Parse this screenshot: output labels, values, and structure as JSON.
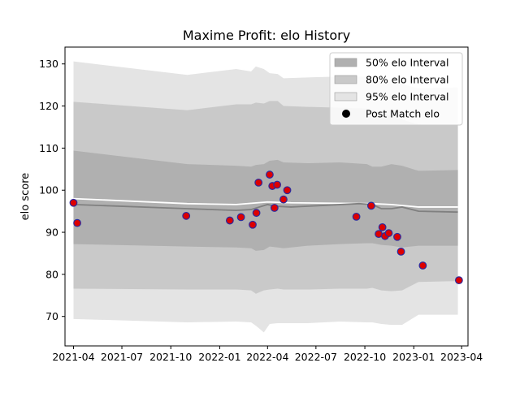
{
  "chart_data": {
    "type": "line",
    "title": "Maxime Profit: elo History",
    "xlabel": "",
    "ylabel": "elo score",
    "xlim": [
      "2021-03-16",
      "2023-04-13"
    ],
    "ylim": [
      63,
      134
    ],
    "x_ticks": [
      "2021-04",
      "2021-07",
      "2021-10",
      "2022-01",
      "2022-04",
      "2022-07",
      "2022-10",
      "2023-01",
      "2023-04"
    ],
    "y_ticks": [
      70,
      80,
      90,
      100,
      110,
      120,
      130
    ],
    "grid": false,
    "legend": {
      "placement": "top-right",
      "entries": [
        {
          "label": "50% elo Interval",
          "kind": "band",
          "color": "#b0b0b0"
        },
        {
          "label": "80% elo Interval",
          "kind": "band",
          "color": "#c9c9c9"
        },
        {
          "label": "95% elo Interval",
          "kind": "band",
          "color": "#e4e4e4"
        },
        {
          "label": "Post Match elo",
          "kind": "marker",
          "color": "#000000"
        }
      ]
    },
    "colors": {
      "band50": "#b0b0b0",
      "band80": "#c9c9c9",
      "band95": "#e4e4e4",
      "median_line": "#808080",
      "mean_line": "#ffffff",
      "point_fill": "#dd0000",
      "point_edge": "#2a2aa0"
    },
    "bands": {
      "x": [
        "2021-04-01",
        "2021-11-01",
        "2022-02-01",
        "2022-03-01",
        "2022-03-10",
        "2022-03-25",
        "2022-04-05",
        "2022-04-20",
        "2022-05-01",
        "2022-06-15",
        "2022-08-15",
        "2022-10-05",
        "2022-10-15",
        "2022-11-01",
        "2022-11-20",
        "2022-12-10",
        "2023-01-10",
        "2023-03-25"
      ],
      "p95_upper": [
        130.6,
        127.4,
        128.8,
        128.2,
        129.4,
        128.8,
        127.8,
        127.6,
        126.6,
        126.8,
        127.0,
        127.0,
        126.2,
        126.0,
        125.6,
        125.2,
        124.2,
        124.4
      ],
      "p80_upper": [
        121.0,
        119.0,
        120.4,
        120.4,
        120.8,
        120.6,
        121.2,
        121.2,
        120.0,
        119.8,
        119.6,
        119.4,
        118.6,
        118.4,
        117.6,
        116.8,
        115.6,
        115.4
      ],
      "p50_upper": [
        109.4,
        106.2,
        105.8,
        105.6,
        106.0,
        106.2,
        107.0,
        107.2,
        106.6,
        106.4,
        106.6,
        106.2,
        105.6,
        105.6,
        106.2,
        105.8,
        104.6,
        104.8
      ],
      "p50_lower": [
        87.2,
        86.6,
        86.4,
        86.2,
        85.6,
        85.8,
        86.6,
        86.4,
        86.2,
        86.8,
        87.2,
        87.4,
        87.4,
        87.0,
        86.8,
        86.4,
        86.8,
        86.8
      ],
      "p80_lower": [
        76.6,
        76.4,
        76.4,
        76.2,
        75.4,
        76.2,
        76.4,
        76.6,
        76.4,
        76.4,
        76.6,
        76.6,
        76.8,
        76.2,
        76.0,
        76.2,
        78.2,
        78.4
      ],
      "p95_lower": [
        69.4,
        68.6,
        68.8,
        68.6,
        67.8,
        66.2,
        68.2,
        68.4,
        68.4,
        68.4,
        68.8,
        68.6,
        68.6,
        68.2,
        68.0,
        68.0,
        70.4,
        70.4
      ]
    },
    "median_line": {
      "x": [
        "2021-04-01",
        "2021-11-01",
        "2022-02-01",
        "2022-03-01",
        "2022-04-01",
        "2022-04-15",
        "2022-05-15",
        "2022-09-20",
        "2022-10-15",
        "2022-11-01",
        "2022-11-20",
        "2022-12-10",
        "2023-01-10",
        "2023-03-25"
      ],
      "y": [
        96.6,
        95.6,
        95.2,
        95.4,
        96.6,
        96.2,
        96.0,
        96.8,
        96.6,
        95.6,
        95.6,
        96.0,
        95.0,
        94.8
      ]
    },
    "mean_line": {
      "x": [
        "2021-04-01",
        "2021-11-01",
        "2022-02-01",
        "2022-04-01",
        "2022-05-15",
        "2022-10-15",
        "2022-11-20",
        "2023-01-10",
        "2023-03-25"
      ],
      "y": [
        98.0,
        96.8,
        96.6,
        97.2,
        97.0,
        96.8,
        96.6,
        96.0,
        96.0
      ]
    },
    "points": {
      "x": [
        "2021-04-01",
        "2021-04-08",
        "2021-10-30",
        "2022-01-20",
        "2022-02-10",
        "2022-03-04",
        "2022-03-11",
        "2022-03-15",
        "2022-04-05",
        "2022-04-10",
        "2022-04-14",
        "2022-04-19",
        "2022-05-01",
        "2022-05-08",
        "2022-09-15",
        "2022-10-13",
        "2022-10-27",
        "2022-11-03",
        "2022-11-08",
        "2022-11-15",
        "2022-12-01",
        "2022-12-08",
        "2023-01-18",
        "2023-03-27"
      ],
      "y": [
        97.0,
        92.2,
        93.9,
        92.8,
        93.6,
        91.8,
        94.6,
        101.8,
        103.7,
        101.0,
        95.8,
        101.3,
        97.8,
        100.0,
        93.7,
        96.3,
        89.6,
        91.2,
        89.1,
        89.8,
        88.9,
        85.4,
        82.1,
        78.6
      ]
    }
  }
}
